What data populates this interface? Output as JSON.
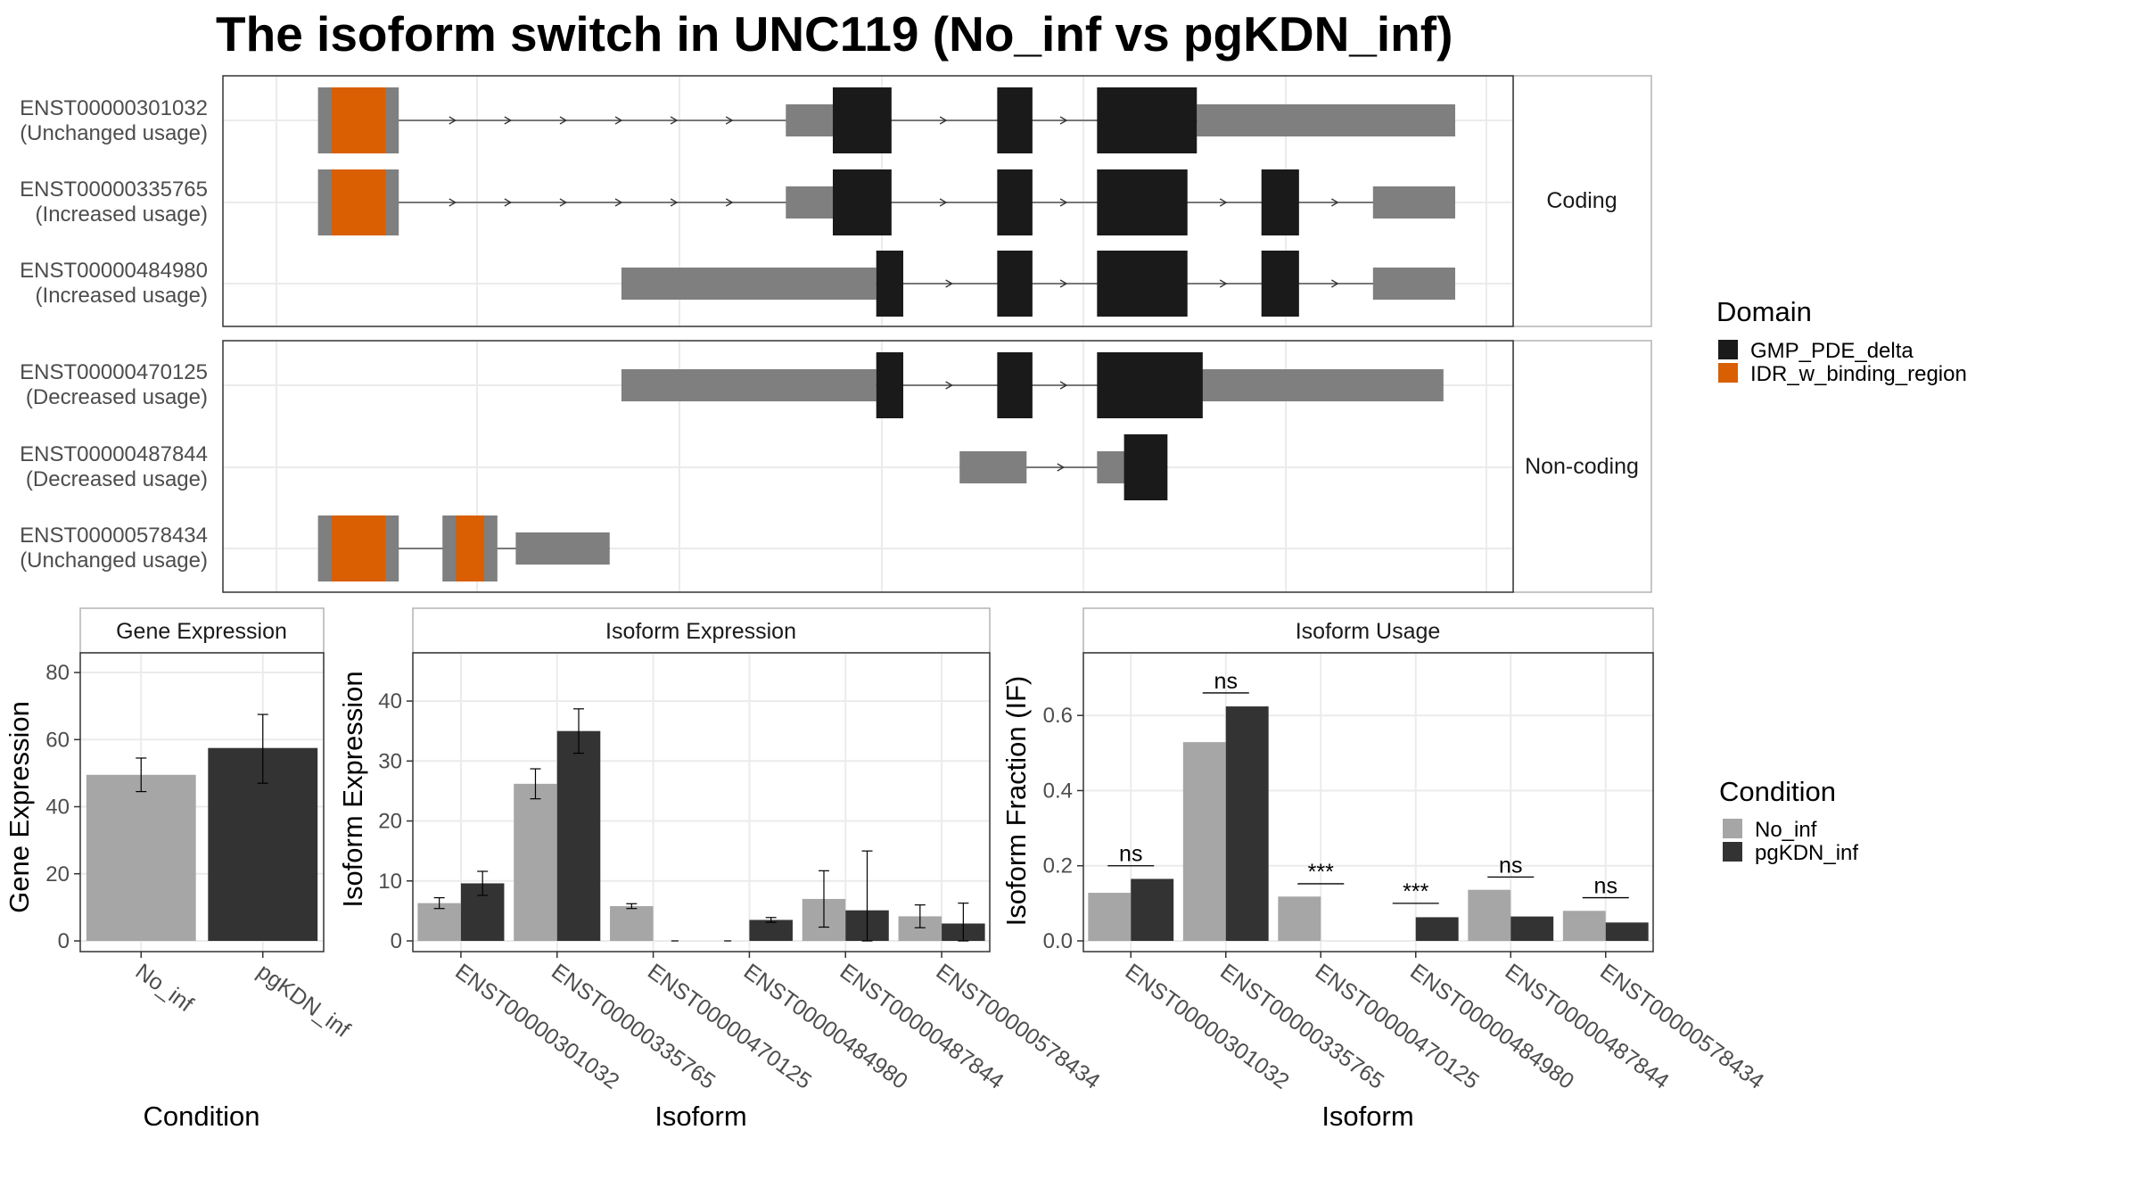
{
  "title": "The isoform switch in UNC119 (No_inf vs pgKDN_inf)",
  "colors": {
    "cds": "#1a1a1a",
    "utr": "#7f7f7f",
    "idr": "#d95f02",
    "no_inf": "#a6a6a6",
    "pgkdn_inf": "#333333",
    "grid": "#ebebeb",
    "frame": "#333333"
  },
  "chart_data": [
    {
      "type": "gene-structure",
      "panels": [
        {
          "strip_label": "Coding",
          "transcripts": [
            {
              "id": "ENST00000301032",
              "status": "(Unchanged usage)",
              "utr": [
                [
                  0.05,
                  0.1
                ],
                [
                  0.43,
                  0.47
                ],
                [
                  0.78,
                  1.0
                ]
              ],
              "cds": [
                [
                  0.47,
                  0.52
                ],
                [
                  0.61,
                  0.64
                ],
                [
                  0.695,
                  0.78
                ]
              ],
              "idr": [
                [
                  0.043,
                  0.089
                ]
              ]
            },
            {
              "id": "ENST00000335765",
              "status": "(Increased usage)",
              "utr": [
                [
                  0.05,
                  0.1
                ],
                [
                  0.43,
                  0.47
                ],
                [
                  0.93,
                  1.0
                ]
              ],
              "cds": [
                [
                  0.47,
                  0.52
                ],
                [
                  0.61,
                  0.64
                ],
                [
                  0.695,
                  0.772
                ],
                [
                  0.835,
                  0.867
                ]
              ],
              "idr": [
                [
                  0.043,
                  0.089
                ]
              ]
            },
            {
              "id": "ENST00000484980",
              "status": "(Increased usage)",
              "utr": [
                [
                  0.29,
                  0.507
                ],
                [
                  0.93,
                  1.0
                ]
              ],
              "cds": [
                [
                  0.507,
                  0.53
                ],
                [
                  0.61,
                  0.64
                ],
                [
                  0.695,
                  0.772
                ],
                [
                  0.835,
                  0.867
                ]
              ],
              "idr": []
            }
          ]
        },
        {
          "strip_label": "Non-coding",
          "transcripts": [
            {
              "id": "ENST00000470125",
              "status": "(Decreased usage)",
              "utr": [
                [
                  0.29,
                  0.507
                ],
                [
                  0.77,
                  0.99
                ]
              ],
              "cds": [
                [
                  0.507,
                  0.53
                ],
                [
                  0.61,
                  0.64
                ],
                [
                  0.695,
                  0.785
                ]
              ],
              "idr": []
            },
            {
              "id": "ENST00000487844",
              "status": "(Decreased usage)",
              "utr": [
                [
                  0.578,
                  0.635
                ],
                [
                  0.695,
                  0.74
                ]
              ],
              "cds": [
                [
                  0.718,
                  0.755
                ]
              ],
              "idr": []
            },
            {
              "id": "ENST00000578434",
              "status": "(Unchanged usage)",
              "utr": [
                [
                  0.05,
                  0.1
                ],
                [
                  0.2,
                  0.28
                ]
              ],
              "cds": [],
              "idr": [
                [
                  0.043,
                  0.089
                ],
                [
                  0.149,
                  0.173
                ]
              ]
            }
          ]
        }
      ]
    },
    {
      "type": "bar",
      "strip_label": "Gene Expression",
      "xlabel": "Condition",
      "ylabel": "Gene Expression",
      "ylim": [
        0,
        84
      ],
      "yticks": [
        0,
        20,
        40,
        60,
        80
      ],
      "categories": [
        "No_inf",
        "pgKDN_inf"
      ],
      "values": [
        49.5,
        57.5
      ],
      "errors": [
        [
          44.5,
          54.5
        ],
        [
          47,
          67.5
        ]
      ]
    },
    {
      "type": "bar",
      "strip_label": "Isoform Expression",
      "xlabel": "Isoform",
      "ylabel": "Isoform Expression",
      "ylim": [
        0,
        47
      ],
      "yticks": [
        0,
        10,
        20,
        30,
        40
      ],
      "categories": [
        "ENST00000301032",
        "ENST00000335765",
        "ENST00000470125",
        "ENST00000484980",
        "ENST00000487844",
        "ENST00000578434"
      ],
      "series": [
        {
          "name": "No_inf",
          "values": [
            6.3,
            26.2,
            5.8,
            0,
            7,
            4.1
          ],
          "errors": [
            [
              5.4,
              7.2
            ],
            [
              23.7,
              28.7
            ],
            [
              5.4,
              6.2
            ],
            [
              0,
              0
            ],
            [
              2.3,
              11.7
            ],
            [
              2.2,
              6
            ]
          ]
        },
        {
          "name": "pgKDN_inf",
          "values": [
            9.6,
            35,
            0,
            3.5,
            5.1,
            2.9
          ],
          "errors": [
            [
              7.6,
              11.6
            ],
            [
              31.3,
              38.7
            ],
            [
              0,
              0
            ],
            [
              3.1,
              3.9
            ],
            [
              0,
              15
            ],
            [
              0,
              6.3
            ]
          ]
        }
      ]
    },
    {
      "type": "bar",
      "strip_label": "Isoform Usage",
      "xlabel": "Isoform",
      "ylabel": "Isoform Fraction (IF)",
      "ylim": [
        0,
        0.75
      ],
      "yticks": [
        0.0,
        0.2,
        0.4,
        0.6
      ],
      "categories": [
        "ENST00000301032",
        "ENST00000335765",
        "ENST00000470125",
        "ENST00000484980",
        "ENST00000487844",
        "ENST00000578434"
      ],
      "series": [
        {
          "name": "No_inf",
          "values": [
            0.128,
            0.529,
            0.118,
            0,
            0.136,
            0.08
          ]
        },
        {
          "name": "pgKDN_inf",
          "values": [
            0.165,
            0.624,
            0,
            0.063,
            0.065,
            0.049
          ]
        }
      ],
      "significance": [
        "ns",
        "ns",
        "***",
        "***",
        "ns",
        "ns"
      ],
      "sig_y": [
        0.2,
        0.66,
        0.152,
        0.1,
        0.17,
        0.115
      ]
    }
  ],
  "legends": {
    "domain": {
      "title": "Domain",
      "items": [
        "GMP_PDE_delta",
        "IDR_w_binding_region"
      ]
    },
    "condition": {
      "title": "Condition",
      "items": [
        "No_inf",
        "pgKDN_inf"
      ]
    }
  }
}
